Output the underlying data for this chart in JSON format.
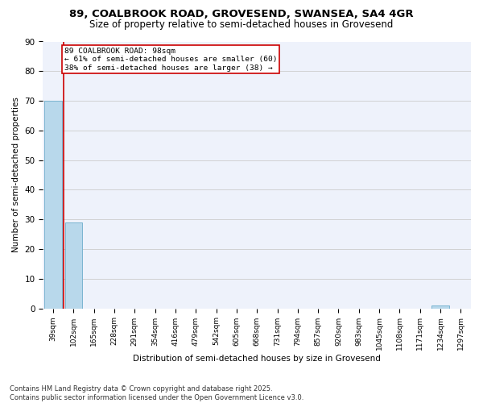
{
  "title_line1": "89, COALBROOK ROAD, GROVESEND, SWANSEA, SA4 4GR",
  "title_line2": "Size of property relative to semi-detached houses in Grovesend",
  "xlabel": "Distribution of semi-detached houses by size in Grovesend",
  "ylabel": "Number of semi-detached properties",
  "categories": [
    "39sqm",
    "102sqm",
    "165sqm",
    "228sqm",
    "291sqm",
    "354sqm",
    "416sqm",
    "479sqm",
    "542sqm",
    "605sqm",
    "668sqm",
    "731sqm",
    "794sqm",
    "857sqm",
    "920sqm",
    "983sqm",
    "1045sqm",
    "1108sqm",
    "1171sqm",
    "1234sqm",
    "1297sqm"
  ],
  "values": [
    70,
    29,
    0,
    0,
    0,
    0,
    0,
    0,
    0,
    0,
    0,
    0,
    0,
    0,
    0,
    0,
    0,
    0,
    0,
    1,
    0
  ],
  "bar_color": "#b8d8eb",
  "bar_edge_color": "#7ab4d0",
  "annotation_text_line1": "89 COALBROOK ROAD: 98sqm",
  "annotation_text_line2": "← 61% of semi-detached houses are smaller (60)",
  "annotation_text_line3": "38% of semi-detached houses are larger (38) →",
  "annotation_box_color": "#ffffff",
  "annotation_box_edge_color": "#cc0000",
  "vline_color": "#cc0000",
  "ylim": [
    0,
    90
  ],
  "yticks": [
    0,
    10,
    20,
    30,
    40,
    50,
    60,
    70,
    80,
    90
  ],
  "grid_color": "#cccccc",
  "background_color": "#eef2fb",
  "footer_line1": "Contains HM Land Registry data © Crown copyright and database right 2025.",
  "footer_line2": "Contains public sector information licensed under the Open Government Licence v3.0."
}
